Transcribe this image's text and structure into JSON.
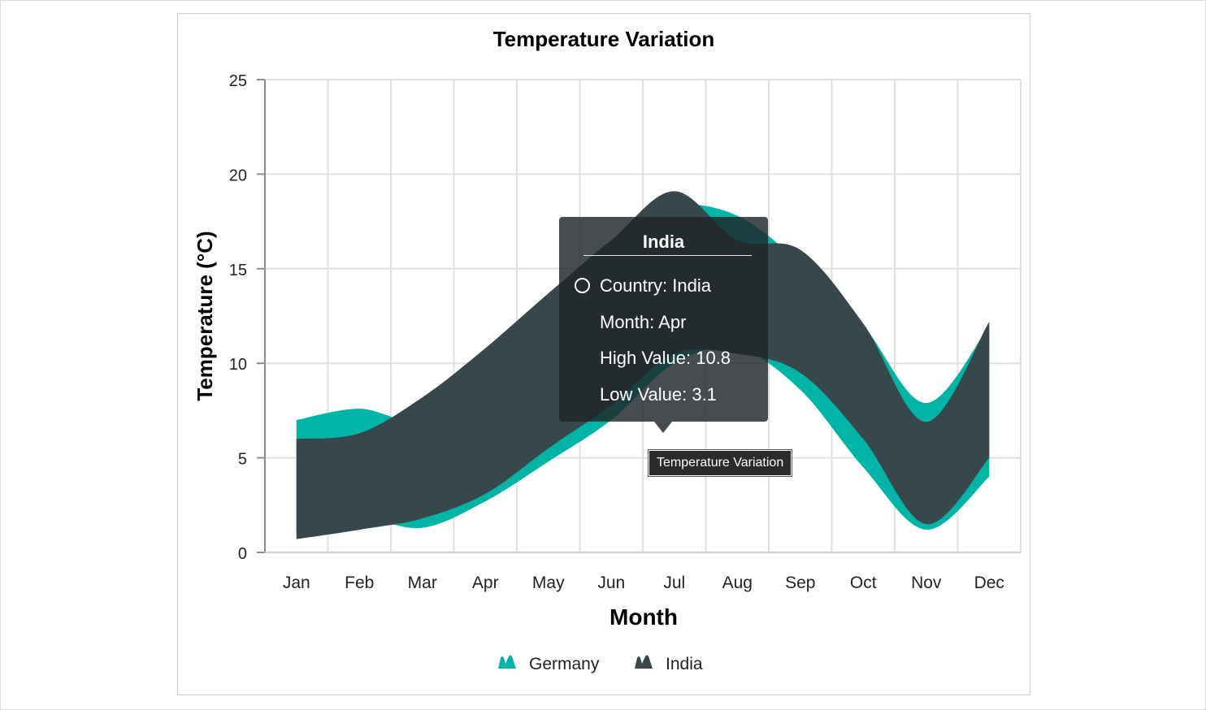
{
  "chart_data": {
    "type": "area",
    "subtype": "spline-range-area",
    "title": "Temperature Variation",
    "xlabel": "Month",
    "ylabel": "Temperature (°C)",
    "categories": [
      "Jan",
      "Feb",
      "Mar",
      "Apr",
      "May",
      "Jun",
      "Jul",
      "Aug",
      "Sep",
      "Oct",
      "Nov",
      "Dec"
    ],
    "ylim": [
      0,
      25
    ],
    "yticks": [
      0,
      5,
      10,
      15,
      20,
      25
    ],
    "grid": true,
    "legend": {
      "position": "bottom"
    },
    "series": [
      {
        "name": "Germany",
        "color": "#00B4A6",
        "high": [
          7.0,
          7.6,
          7.0,
          9.5,
          13.5,
          16.5,
          18.3,
          17.8,
          15.3,
          12.0,
          7.9,
          12.0
        ],
        "low": [
          1.0,
          1.8,
          1.3,
          2.7,
          4.8,
          7.0,
          10.0,
          10.8,
          8.6,
          4.5,
          1.2,
          4.0
        ]
      },
      {
        "name": "India",
        "color": "#37474B",
        "high": [
          6.0,
          6.3,
          8.2,
          10.8,
          13.7,
          16.5,
          19.1,
          16.5,
          16.0,
          12.1,
          6.9,
          12.2
        ],
        "low": [
          0.7,
          1.2,
          1.8,
          3.1,
          5.5,
          7.8,
          10.5,
          10.5,
          9.5,
          6.0,
          1.5,
          5.0
        ]
      }
    ],
    "tooltip": {
      "header": "India",
      "rows": [
        "Country: India",
        "Month: Apr",
        "High Value: 10.8",
        "Low Value: 3.1"
      ]
    },
    "hover_hint": "Temperature Variation"
  }
}
